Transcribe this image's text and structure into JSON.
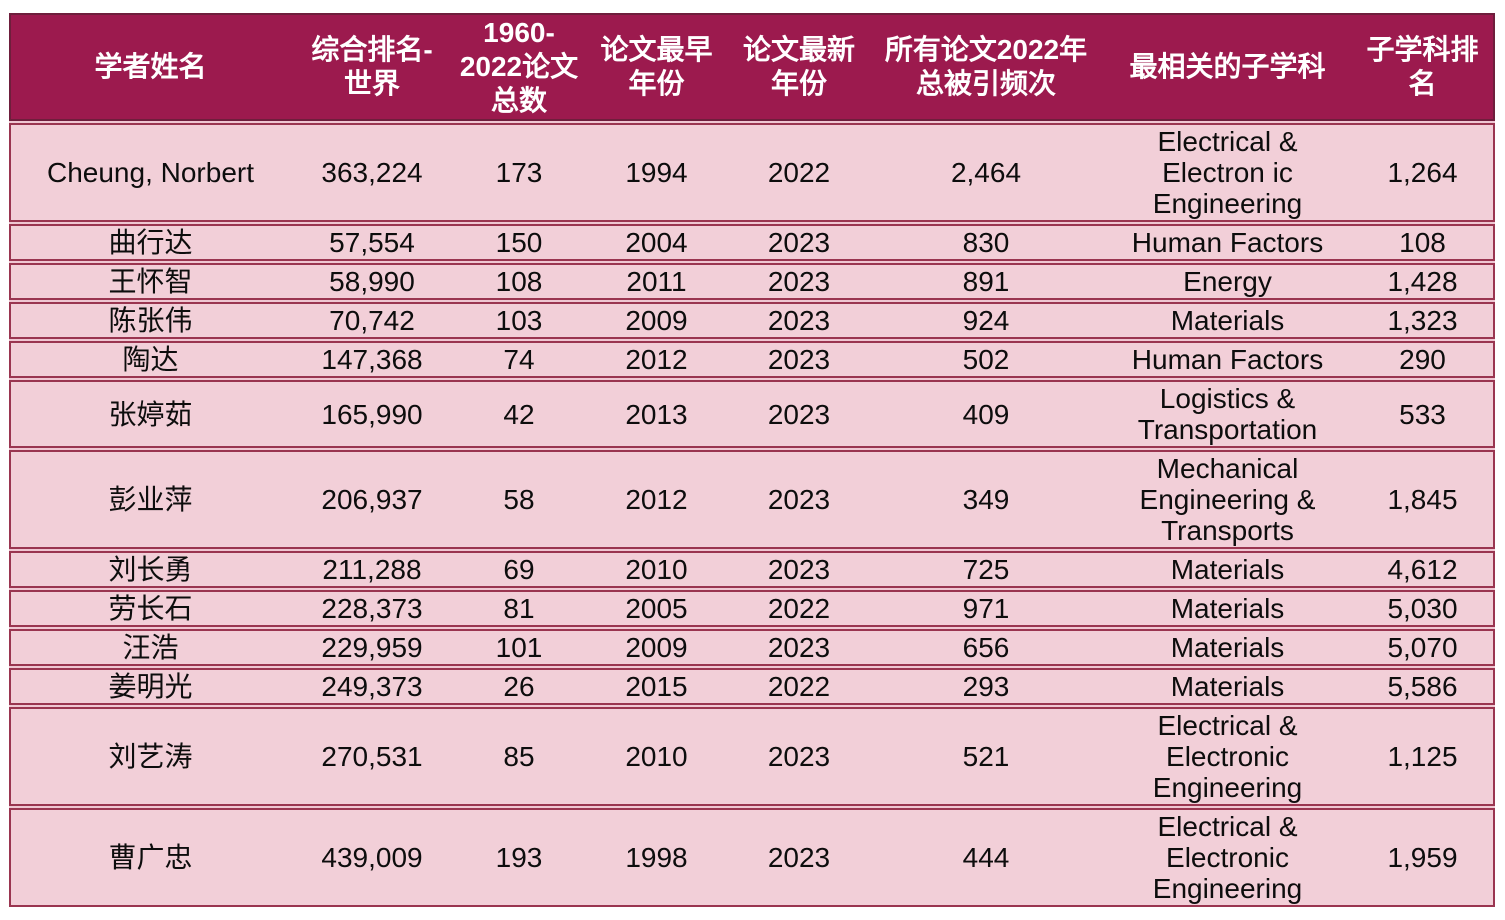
{
  "colors": {
    "header_bg": "#9C1A4E",
    "header_border": "#6E1E3C",
    "header_text": "#FFFFFF",
    "row_bg": "#F2CFD8",
    "row_border": "#9A3550",
    "row_gap": "#EFC7D2",
    "body_text": "#0D0D0D"
  },
  "table": {
    "columns": [
      {
        "label": "学者姓名"
      },
      {
        "label": "综合排名-\n世界"
      },
      {
        "label": "1960-\n2022论文\n总数"
      },
      {
        "label": "论文最早\n年份"
      },
      {
        "label": "论文最新\n年份"
      },
      {
        "label": "所有论文2022年\n总被引频次"
      },
      {
        "label": "最相关的子学科"
      },
      {
        "label": "子学科排\n名"
      }
    ],
    "rows": [
      {
        "cells": [
          "Cheung, Norbert",
          "363,224",
          "173",
          "1994",
          "2022",
          "2,464",
          "Electrical &\nElectron ic\nEngineering",
          "1,264"
        ]
      },
      {
        "cells": [
          "曲行达",
          "57,554",
          "150",
          "2004",
          "2023",
          "830",
          "Human Factors",
          "108"
        ]
      },
      {
        "cells": [
          "王怀智",
          "58,990",
          "108",
          "2011",
          "2023",
          "891",
          "Energy",
          "1,428"
        ]
      },
      {
        "cells": [
          "陈张伟",
          "70,742",
          "103",
          "2009",
          "2023",
          "924",
          "Materials",
          "1,323"
        ]
      },
      {
        "cells": [
          "陶达",
          "147,368",
          "74",
          "2012",
          "2023",
          "502",
          "Human Factors",
          "290"
        ]
      },
      {
        "cells": [
          "张婷茹",
          "165,990",
          "42",
          "2013",
          "2023",
          "409",
          "Logistics &\nTransportation",
          "533"
        ]
      },
      {
        "cells": [
          "彭业萍",
          "206,937",
          "58",
          "2012",
          "2023",
          "349",
          "Mechanical\nEngineering &\nTransports",
          "1,845"
        ]
      },
      {
        "cells": [
          "刘长勇",
          "211,288",
          "69",
          "2010",
          "2023",
          "725",
          "Materials",
          "4,612"
        ]
      },
      {
        "cells": [
          "劳长石",
          "228,373",
          "81",
          "2005",
          "2022",
          "971",
          "Materials",
          "5,030"
        ]
      },
      {
        "cells": [
          "汪浩",
          "229,959",
          "101",
          "2009",
          "2023",
          "656",
          "Materials",
          "5,070"
        ]
      },
      {
        "cells": [
          "姜明光",
          "249,373",
          "26",
          "2015",
          "2022",
          "293",
          "Materials",
          "5,586"
        ]
      },
      {
        "cells": [
          "刘艺涛",
          "270,531",
          "85",
          "2010",
          "2023",
          "521",
          "Electrical &\nElectronic\nEngineering",
          "1,125"
        ]
      },
      {
        "cells": [
          "曹广忠",
          "439,009",
          "193",
          "1998",
          "2023",
          "444",
          "Electrical &\nElectronic\nEngineering",
          "1,959"
        ]
      }
    ]
  }
}
